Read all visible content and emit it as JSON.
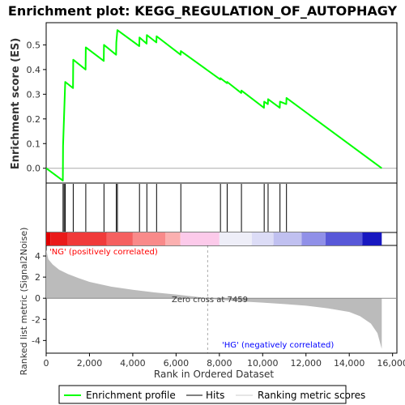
{
  "chart_data": {
    "type": "line",
    "title": "Enrichment plot: KEGG_REGULATION_OF_AUTOPHAGY",
    "xlabel": "Rank in Ordered Dataset",
    "ylabel_top": "Enrichment score (ES)",
    "ylabel_bottom": "Ranked list metric (Signal2Noise)",
    "xlim": [
      0,
      16200
    ],
    "ylim_top": [
      -0.06,
      0.59
    ],
    "ylim_bottom": [
      -5.2,
      5.0
    ],
    "x_ticks": [
      0,
      2000,
      4000,
      6000,
      8000,
      10000,
      12000,
      14000,
      16000
    ],
    "x_tick_labels": [
      "0",
      "2,000",
      "4,000",
      "6,000",
      "8,000",
      "10,000",
      "12,000",
      "14,000",
      "16,000"
    ],
    "y_ticks_top": [
      0.0,
      0.1,
      0.2,
      0.3,
      0.4,
      0.5
    ],
    "y_tick_labels_top": [
      "0.0",
      "0.1",
      "0.2",
      "0.3",
      "0.4",
      "0.5"
    ],
    "y_ticks_bottom": [
      -4,
      -2,
      0,
      2,
      4
    ],
    "y_tick_labels_bottom": [
      "-4",
      "-2",
      "0",
      "2",
      "4"
    ],
    "legend": {
      "placement": "bottom",
      "entries": [
        "Enrichment profile",
        "Hits",
        "Ranking metric scores"
      ]
    },
    "colors": {
      "profile": "#00ff00",
      "hits": "#000000",
      "metric_fill": "#bbbbbb",
      "zero_line": "#aaaaaa",
      "pos_label": "#ff0000",
      "neg_label": "#0000ff"
    },
    "annotations": {
      "positive": "'NG' (positively correlated)",
      "negative": "'HG' (negatively correlated)",
      "zero_cross": "Zero cross at 7459"
    },
    "zero_cross": 7459,
    "n_genes": 15500,
    "hits": [
      780,
      830,
      880,
      1250,
      1830,
      2670,
      3240,
      3290,
      4310,
      4650,
      5100,
      6220,
      8050,
      8360,
      9020,
      10070,
      10250,
      10800,
      11100
    ],
    "es_points": [
      [
        0,
        0.0
      ],
      [
        770,
        -0.05
      ],
      [
        780,
        0.09
      ],
      [
        830,
        0.22
      ],
      [
        880,
        0.35
      ],
      [
        1240,
        0.325
      ],
      [
        1250,
        0.44
      ],
      [
        1820,
        0.4
      ],
      [
        1830,
        0.49
      ],
      [
        2660,
        0.435
      ],
      [
        2670,
        0.5
      ],
      [
        3230,
        0.46
      ],
      [
        3240,
        0.51
      ],
      [
        3290,
        0.56
      ],
      [
        4300,
        0.495
      ],
      [
        4310,
        0.53
      ],
      [
        4640,
        0.505
      ],
      [
        4650,
        0.54
      ],
      [
        5090,
        0.51
      ],
      [
        5100,
        0.535
      ],
      [
        6210,
        0.46
      ],
      [
        6220,
        0.475
      ],
      [
        8040,
        0.36
      ],
      [
        8050,
        0.365
      ],
      [
        8350,
        0.345
      ],
      [
        8360,
        0.35
      ],
      [
        9010,
        0.305
      ],
      [
        9020,
        0.315
      ],
      [
        10060,
        0.245
      ],
      [
        10070,
        0.27
      ],
      [
        10240,
        0.26
      ],
      [
        10250,
        0.28
      ],
      [
        10790,
        0.245
      ],
      [
        10800,
        0.27
      ],
      [
        11090,
        0.26
      ],
      [
        11100,
        0.285
      ],
      [
        15500,
        0.0
      ]
    ],
    "metric_curve": [
      [
        0,
        4.6
      ],
      [
        100,
        3.7
      ],
      [
        300,
        3.2
      ],
      [
        600,
        2.7
      ],
      [
        1000,
        2.3
      ],
      [
        1500,
        1.9
      ],
      [
        2000,
        1.55
      ],
      [
        3000,
        1.1
      ],
      [
        4000,
        0.8
      ],
      [
        5000,
        0.55
      ],
      [
        6000,
        0.35
      ],
      [
        7000,
        0.12
      ],
      [
        7459,
        0.0
      ],
      [
        8000,
        -0.15
      ],
      [
        9000,
        -0.3
      ],
      [
        10000,
        -0.42
      ],
      [
        11000,
        -0.55
      ],
      [
        12000,
        -0.7
      ],
      [
        13000,
        -0.95
      ],
      [
        14000,
        -1.3
      ],
      [
        14500,
        -1.7
      ],
      [
        15000,
        -2.4
      ],
      [
        15300,
        -3.3
      ],
      [
        15500,
        -4.8
      ]
    ],
    "heat_bands": [
      {
        "start": 0,
        "end": 200,
        "color": "#e00000"
      },
      {
        "start": 200,
        "end": 1000,
        "color": "#ea1a1a"
      },
      {
        "start": 1000,
        "end": 2800,
        "color": "#f03a3a"
      },
      {
        "start": 2800,
        "end": 4000,
        "color": "#f56060"
      },
      {
        "start": 4000,
        "end": 5500,
        "color": "#f98a8a"
      },
      {
        "start": 5500,
        "end": 6200,
        "color": "#fbb0b0"
      },
      {
        "start": 6200,
        "end": 8000,
        "color": "#fccaea"
      },
      {
        "start": 8000,
        "end": 9500,
        "color": "#eeeef8"
      },
      {
        "start": 9500,
        "end": 10500,
        "color": "#dcdcf6"
      },
      {
        "start": 10500,
        "end": 11800,
        "color": "#c0c0f0"
      },
      {
        "start": 11800,
        "end": 12900,
        "color": "#9090e8"
      },
      {
        "start": 12900,
        "end": 14600,
        "color": "#5858d8"
      },
      {
        "start": 14600,
        "end": 15500,
        "color": "#1818c0"
      }
    ]
  }
}
